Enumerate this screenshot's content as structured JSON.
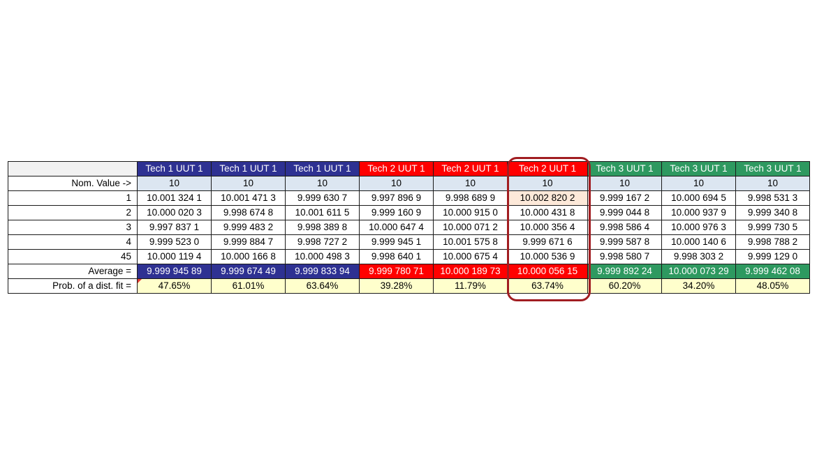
{
  "table": {
    "columns": [
      {
        "header": "Tech 1 UUT 1",
        "nominal": "10",
        "values": [
          "10.001 324 1",
          "10.000 020 3",
          "9.997 837 1",
          "9.999 523 0",
          "10.000 119 4"
        ],
        "average": "9.999 945 89",
        "prob": "47.65%",
        "group_color": "#2e3192"
      },
      {
        "header": "Tech 1 UUT 1",
        "nominal": "10",
        "values": [
          "10.001 471 3",
          "9.998 674 8",
          "9.999 483 2",
          "9.999 884 7",
          "10.000 166 8"
        ],
        "average": "9.999 674 49",
        "prob": "61.01%",
        "group_color": "#2e3192"
      },
      {
        "header": "Tech 1 UUT 1",
        "nominal": "10",
        "values": [
          "9.999 630 7",
          "10.001 611 5",
          "9.998 389 8",
          "9.998 727 2",
          "10.000 498 3"
        ],
        "average": "9.999 833 94",
        "prob": "63.64%",
        "group_color": "#2e3192"
      },
      {
        "header": "Tech 2 UUT 1",
        "nominal": "10",
        "values": [
          "9.997 896 9",
          "9.999 160 9",
          "10.000 647 4",
          "9.999 945 1",
          "9.998 640 1"
        ],
        "average": "9.999 780 71",
        "prob": "39.28%",
        "group_color": "#ff0000"
      },
      {
        "header": "Tech 2 UUT 1",
        "nominal": "10",
        "values": [
          "9.998 689 9",
          "10.000 915 0",
          "10.000 071 2",
          "10.001 575 8",
          "10.000 675 4"
        ],
        "average": "10.000 189 73",
        "prob": "11.79%",
        "group_color": "#ff0000"
      },
      {
        "header": "Tech 2 UUT 1",
        "nominal": "10",
        "values": [
          "10.002 820 2",
          "10.000 431 8",
          "10.000 356 4",
          "9.999 671 6",
          "10.000 536 9"
        ],
        "average": "10.000 056 15",
        "prob": "63.74%",
        "group_color": "#ff0000"
      },
      {
        "header": "Tech 3 UUT 1",
        "nominal": "10",
        "values": [
          "9.999 167 2",
          "9.999 044 8",
          "9.998 586 4",
          "9.999 587 8",
          "9.998 580 7"
        ],
        "average": "9.999 892 24",
        "prob": "60.20%",
        "group_color": "#2e9960"
      },
      {
        "header": "Tech 3 UUT 1",
        "nominal": "10",
        "values": [
          "10.000 694 5",
          "10.000 937 9",
          "10.000 976 3",
          "10.000 140 6",
          "9.998 303 2"
        ],
        "average": "10.000 073 29",
        "prob": "34.20%",
        "group_color": "#2e9960"
      },
      {
        "header": "Tech 3 UUT 1",
        "nominal": "10",
        "values": [
          "9.998 531 3",
          "9.999 340 8",
          "9.999 730 5",
          "9.998 788 2",
          "9.999 129 0"
        ],
        "average": "9.999 462 08",
        "prob": "48.05%",
        "group_color": "#2e9960"
      }
    ],
    "nominal_label": "Nom. Value ->",
    "row_labels": [
      "1",
      "2",
      "3",
      "4",
      "45"
    ],
    "average_label": "Average =",
    "prob_label": "Prob. of a dist. fit =",
    "highlight_color": "#a11d21",
    "highlighted_cell_color": "#fde9d9"
  }
}
